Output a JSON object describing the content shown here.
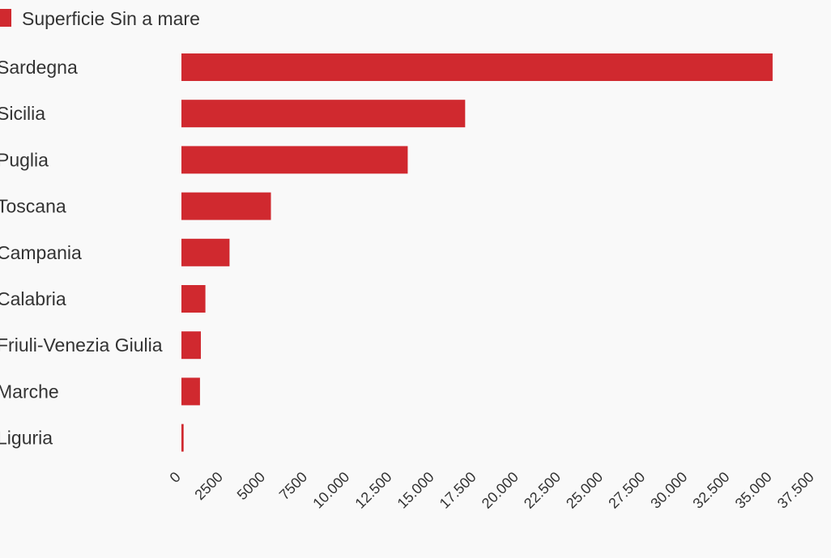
{
  "chart_data": {
    "type": "bar",
    "orientation": "horizontal",
    "categories": [
      "Sardegna",
      "Sicilia",
      "Puglia",
      "Toscana",
      "Campania",
      "Calabria",
      "Friuli-Venezia Giulia",
      "Marche",
      "Liguria"
    ],
    "series": [
      {
        "name": "Superficie Sin a mare",
        "color": "#d0292f",
        "values": [
          35000,
          16800,
          13400,
          5300,
          2850,
          1420,
          1150,
          1100,
          130
        ]
      }
    ],
    "xlim": [
      0,
      37500
    ],
    "x_ticks": [
      0,
      2500,
      5000,
      7500,
      10000,
      12500,
      15000,
      17500,
      20000,
      22500,
      25000,
      27500,
      30000,
      32500,
      35000,
      37500
    ],
    "x_tick_labels": [
      "0",
      "2500",
      "5000",
      "7500",
      "10.000",
      "12.500",
      "15.000",
      "17.500",
      "20.000",
      "22.500",
      "25.000",
      "27.500",
      "30.000",
      "32.500",
      "35.000",
      "37.500"
    ],
    "legend_position": "top-left",
    "grid": false
  }
}
